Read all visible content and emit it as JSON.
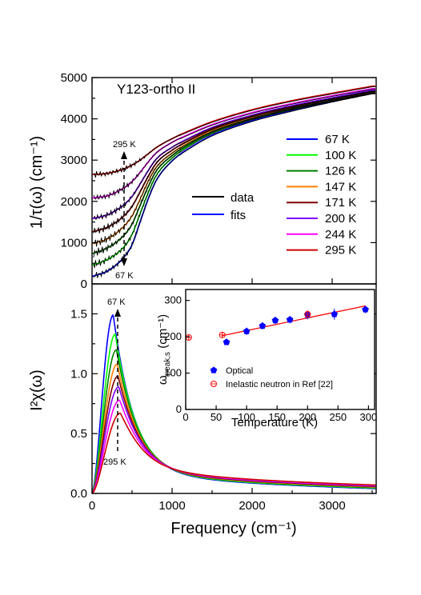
{
  "chart_data": [
    {
      "type": "line",
      "panel": "top",
      "annotation_title": "Y123-ortho II",
      "xlabel": "Frequency (cm⁻¹)",
      "ylabel": "1/τ(ω) (cm⁻¹)",
      "xlim": [
        0,
        3550
      ],
      "ylim": [
        0,
        5000
      ],
      "x_ticks": [
        0,
        1000,
        2000,
        3000
      ],
      "y_ticks": [
        0,
        1000,
        2000,
        3000,
        4000,
        5000
      ],
      "x_tick_labels": [
        "0",
        "1000",
        "2000",
        "3000"
      ],
      "y_tick_labels": [
        "0",
        "1000",
        "2000",
        "3000",
        "4000",
        "5000"
      ],
      "grid": false,
      "legend_position": "right",
      "style_legend": [
        {
          "name": "data",
          "color": "#000000"
        },
        {
          "name": "fits",
          "color": "#0000ff"
        }
      ],
      "annotations": [
        "295 K",
        "67 K"
      ],
      "series": [
        {
          "name": "67 K",
          "color": "#0000ff",
          "x": [
            0,
            200,
            400,
            500,
            600,
            700,
            800,
            1000,
            1250,
            1500,
            2000,
            2500,
            3000,
            3500
          ],
          "y": [
            180,
            320,
            650,
            950,
            1500,
            2050,
            2500,
            2980,
            3330,
            3600,
            3950,
            4200,
            4420,
            4620
          ]
        },
        {
          "name": "100 K",
          "color": "#00ff00",
          "x": [
            0,
            200,
            400,
            500,
            600,
            700,
            800,
            1000,
            1250,
            1500,
            2000,
            2500,
            3000,
            3500
          ],
          "y": [
            450,
            600,
            900,
            1200,
            1700,
            2200,
            2620,
            3050,
            3390,
            3650,
            3990,
            4230,
            4440,
            4630
          ]
        },
        {
          "name": "126 K",
          "color": "#008000",
          "x": [
            0,
            200,
            400,
            500,
            600,
            700,
            800,
            1000,
            1250,
            1500,
            2000,
            2500,
            3000,
            3500
          ],
          "y": [
            730,
            880,
            1180,
            1450,
            1900,
            2350,
            2730,
            3110,
            3430,
            3680,
            4010,
            4250,
            4450,
            4640
          ]
        },
        {
          "name": "147 K",
          "color": "#ff8000",
          "x": [
            0,
            200,
            400,
            500,
            600,
            700,
            800,
            1000,
            1250,
            1500,
            2000,
            2500,
            3000,
            3500
          ],
          "y": [
            970,
            1100,
            1400,
            1650,
            2050,
            2480,
            2820,
            3170,
            3470,
            3710,
            4030,
            4270,
            4470,
            4650
          ]
        },
        {
          "name": "171 K",
          "color": "#800000",
          "x": [
            0,
            200,
            400,
            500,
            600,
            700,
            800,
            1000,
            1250,
            1500,
            2000,
            2500,
            3000,
            3500
          ],
          "y": [
            1260,
            1380,
            1650,
            1880,
            2230,
            2600,
            2920,
            3240,
            3520,
            3750,
            4060,
            4290,
            4490,
            4670
          ]
        },
        {
          "name": "200 K",
          "color": "#8000ff",
          "x": [
            0,
            200,
            400,
            500,
            600,
            700,
            800,
            1000,
            1250,
            1500,
            2000,
            2500,
            3000,
            3500
          ],
          "y": [
            1580,
            1680,
            1920,
            2120,
            2420,
            2740,
            3020,
            3310,
            3570,
            3790,
            4090,
            4320,
            4510,
            4690
          ]
        },
        {
          "name": "244 K",
          "color": "#ff00ff",
          "x": [
            0,
            200,
            400,
            500,
            600,
            700,
            800,
            1000,
            1250,
            1500,
            2000,
            2500,
            3000,
            3500
          ],
          "y": [
            2080,
            2140,
            2330,
            2480,
            2700,
            2950,
            3170,
            3430,
            3660,
            3860,
            4150,
            4370,
            4560,
            4730
          ]
        },
        {
          "name": "295 K",
          "color": "#cc0000",
          "x": [
            0,
            200,
            400,
            500,
            600,
            700,
            800,
            1000,
            1250,
            1500,
            2000,
            2500,
            3000,
            3500
          ],
          "y": [
            2650,
            2680,
            2790,
            2880,
            3000,
            3150,
            3300,
            3520,
            3740,
            3930,
            4220,
            4440,
            4620,
            4790
          ]
        }
      ]
    },
    {
      "type": "line",
      "panel": "bottom",
      "xlabel": "Frequency (cm⁻¹)",
      "ylabel": "I²χ(ω)",
      "xlim": [
        0,
        3550
      ],
      "ylim": [
        0,
        1.75
      ],
      "x_ticks": [
        0,
        1000,
        2000,
        3000
      ],
      "y_ticks": [
        0,
        0.5,
        1.0,
        1.5
      ],
      "x_tick_labels": [
        "0",
        "1000",
        "2000",
        "3000"
      ],
      "y_tick_labels": [
        "0.0",
        "0.5",
        "1.0",
        "1.5"
      ],
      "grid": false,
      "annotations": [
        "67 K",
        "295 K"
      ],
      "series": [
        {
          "name": "67 K",
          "color": "#0000ff",
          "peak_x": 265,
          "peak": 1.49
        },
        {
          "name": "100 K",
          "color": "#00ff00",
          "peak_x": 290,
          "peak": 1.33
        },
        {
          "name": "126 K",
          "color": "#008000",
          "peak_x": 305,
          "peak": 1.2
        },
        {
          "name": "147 K",
          "color": "#ff8000",
          "peak_x": 315,
          "peak": 1.08
        },
        {
          "name": "171 K",
          "color": "#800000",
          "peak_x": 325,
          "peak": 0.98
        },
        {
          "name": "200 K",
          "color": "#8000ff",
          "peak_x": 335,
          "peak": 0.89
        },
        {
          "name": "244 K",
          "color": "#ff00ff",
          "peak_x": 345,
          "peak": 0.78
        },
        {
          "name": "295 K",
          "color": "#cc0000",
          "peak_x": 355,
          "peak": 0.67
        }
      ]
    },
    {
      "type": "scatter",
      "panel": "inset",
      "xlabel": "Temperature (K)",
      "ylabel": "ωpeak,s (cm⁻¹)",
      "xlim": [
        0,
        310
      ],
      "ylim": [
        0,
        330
      ],
      "x_ticks": [
        0,
        50,
        100,
        150,
        200,
        250,
        300
      ],
      "y_ticks": [
        0,
        100,
        200,
        300
      ],
      "x_tick_labels": [
        "0",
        "50",
        "100",
        "150",
        "200",
        "250",
        "300"
      ],
      "y_tick_labels": [
        "0",
        "100",
        "200",
        "300"
      ],
      "grid": false,
      "legend_position": "bottom-left",
      "series": [
        {
          "name": "Optical",
          "color": "#0000ff",
          "marker": "pentagon",
          "x": [
            67,
            100,
            126,
            147,
            171,
            200,
            244,
            295
          ],
          "y": [
            185,
            215,
            230,
            245,
            247,
            260,
            262,
            275
          ],
          "err": [
            5,
            10,
            10,
            10,
            10,
            12,
            15,
            10
          ]
        },
        {
          "name": "Inelastic neutron in Ref [22]",
          "color": "#ff0000",
          "marker": "circle-cross",
          "x": [
            5,
            60,
            200
          ],
          "y": [
            198,
            205,
            262
          ],
          "err": [
            8,
            8,
            10
          ]
        }
      ],
      "fit_line": {
        "color": "#ff0000",
        "x": [
          60,
          295
        ],
        "y": [
          203,
          285
        ]
      }
    }
  ]
}
